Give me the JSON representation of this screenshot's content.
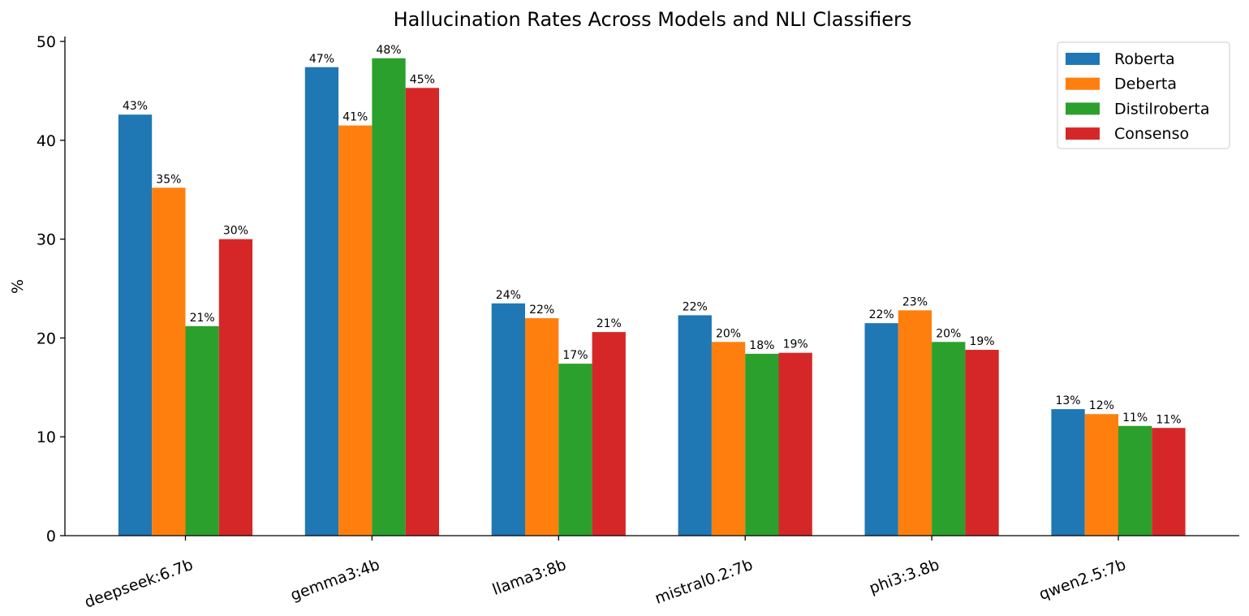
{
  "chart_data": {
    "type": "bar",
    "title": "Hallucination Rates Across Models and NLI Classifiers",
    "xlabel": "",
    "ylabel": "%",
    "ylim": [
      0,
      50.5
    ],
    "yticks": [
      0,
      10,
      20,
      30,
      40,
      50
    ],
    "grid": false,
    "legend_position": "top-right",
    "categories": [
      "deepseek:6.7b",
      "gemma3:4b",
      "llama3:8b",
      "mistral0.2:7b",
      "phi3:3.8b",
      "qwen2.5:7b"
    ],
    "series": [
      {
        "name": "Roberta",
        "color": "#1f77b4",
        "values": [
          42.6,
          47.4,
          23.5,
          22.3,
          21.5,
          12.8
        ],
        "labels": [
          "43%",
          "47%",
          "24%",
          "22%",
          "22%",
          "13%"
        ]
      },
      {
        "name": "Deberta",
        "color": "#ff7f0e",
        "values": [
          35.2,
          41.5,
          22.0,
          19.6,
          22.8,
          12.3
        ],
        "labels": [
          "35%",
          "41%",
          "22%",
          "20%",
          "23%",
          "12%"
        ]
      },
      {
        "name": "Distilroberta",
        "color": "#2ca02c",
        "values": [
          21.2,
          48.3,
          17.4,
          18.4,
          19.6,
          11.1
        ],
        "labels": [
          "21%",
          "48%",
          "17%",
          "18%",
          "20%",
          "11%"
        ]
      },
      {
        "name": "Consenso",
        "color": "#d62728",
        "values": [
          30.0,
          45.3,
          20.6,
          18.5,
          18.8,
          10.9
        ],
        "labels": [
          "30%",
          "45%",
          "21%",
          "19%",
          "19%",
          "11%"
        ]
      }
    ]
  }
}
